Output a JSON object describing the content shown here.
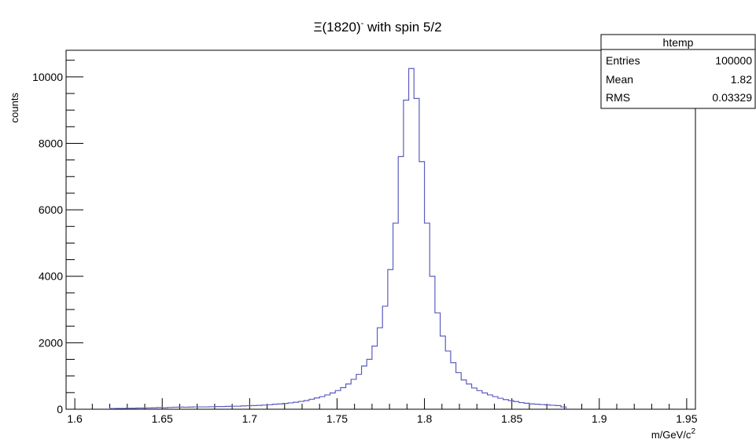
{
  "chart_data": {
    "type": "bar",
    "title": "Ξ(1820)",
    "title_superscript": "-",
    "title_suffix": " with spin 5/2",
    "xlabel": "m/GeV/c",
    "xlabel_superscript": "2",
    "ylabel": "counts",
    "xlim": [
      1.595,
      1.955
    ],
    "ylim": [
      0,
      10800
    ],
    "x_ticks": [
      "1.6",
      "1.65",
      "1.7",
      "1.75",
      "1.8",
      "1.85",
      "1.9",
      "1.95"
    ],
    "y_ticks": [
      "0",
      "2000",
      "4000",
      "6000",
      "8000",
      "10000"
    ],
    "bin_start": 1.62,
    "bin_width": 0.003,
    "line_color": "#5c5cc0",
    "values": [
      20,
      25,
      25,
      30,
      30,
      35,
      35,
      40,
      45,
      50,
      45,
      55,
      60,
      65,
      60,
      65,
      70,
      70,
      70,
      75,
      80,
      80,
      85,
      90,
      90,
      100,
      105,
      110,
      115,
      125,
      135,
      150,
      160,
      175,
      190,
      210,
      235,
      260,
      300,
      340,
      380,
      430,
      490,
      560,
      650,
      760,
      900,
      1050,
      1300,
      1500,
      1900,
      2450,
      3100,
      4200,
      5600,
      7600,
      9300,
      10250,
      9350,
      7450,
      5600,
      4000,
      2900,
      2200,
      1750,
      1400,
      1100,
      880,
      760,
      640,
      560,
      490,
      430,
      380,
      330,
      290,
      260,
      230,
      200,
      180,
      160,
      150,
      140,
      130,
      120,
      110,
      70
    ]
  },
  "stats_box": {
    "name": "htemp",
    "rows": [
      {
        "label": "Entries",
        "value": "100000"
      },
      {
        "label": "Mean",
        "value": "1.82"
      },
      {
        "label": "RMS",
        "value": "0.03329"
      }
    ]
  }
}
